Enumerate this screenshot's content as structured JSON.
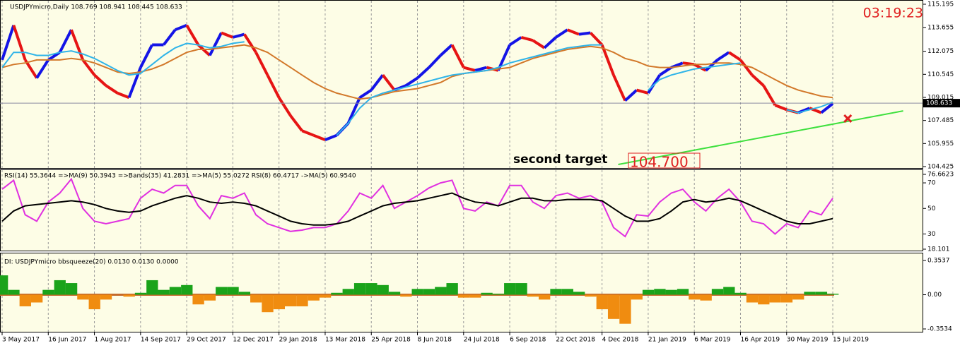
{
  "chart_data": [
    {
      "type": "line",
      "title": "USDJPYmicro,Daily  108.769 108.941 108.445 108.633",
      "clock": "03:19:23",
      "ylim": [
        104.425,
        115.195
      ],
      "yticks": [
        104.425,
        105.955,
        107.485,
        109.015,
        110.545,
        112.075,
        113.655,
        115.195
      ],
      "current_price": 108.633,
      "up_color": "#1414e6",
      "down_color": "#e61414",
      "values": [
        111.5,
        113.8,
        111.5,
        110.3,
        111.5,
        112.0,
        113.5,
        111.5,
        110.5,
        109.8,
        109.3,
        109.0,
        111.0,
        112.5,
        112.5,
        113.5,
        113.8,
        112.5,
        111.8,
        113.3,
        113.0,
        113.2,
        112.0,
        110.5,
        109.0,
        107.8,
        106.8,
        106.5,
        106.2,
        106.5,
        107.3,
        109.0,
        109.5,
        110.5,
        109.5,
        109.8,
        110.3,
        111.0,
        111.8,
        112.5,
        111.0,
        110.8,
        111.0,
        110.8,
        112.5,
        113.0,
        112.8,
        112.3,
        113.0,
        113.5,
        113.2,
        113.3,
        112.5,
        110.5,
        108.8,
        109.5,
        109.3,
        110.5,
        111.0,
        111.3,
        111.2,
        110.8,
        111.5,
        112.0,
        111.5,
        110.5,
        109.8,
        108.5,
        108.2,
        108.0,
        108.3,
        108.0,
        108.6
      ],
      "series": [
        {
          "color": "#d2782a",
          "values": [
            111.0,
            111.2,
            111.3,
            111.5,
            111.5,
            111.5,
            111.6,
            111.5,
            111.3,
            111.0,
            110.7,
            110.6,
            110.7,
            110.9,
            111.2,
            111.6,
            112.0,
            112.2,
            112.2,
            112.3,
            112.4,
            112.5,
            112.3,
            112.0,
            111.5,
            111.0,
            110.5,
            110.0,
            109.6,
            109.3,
            109.1,
            108.9,
            109.0,
            109.2,
            109.4,
            109.5,
            109.6,
            109.8,
            110.0,
            110.4,
            110.6,
            110.7,
            110.8,
            110.9,
            111.0,
            111.3,
            111.6,
            111.8,
            112.0,
            112.2,
            112.3,
            112.4,
            112.3,
            112.0,
            111.6,
            111.4,
            111.1,
            111.0,
            111.0,
            111.1,
            111.2,
            111.2,
            111.3,
            111.3,
            111.2,
            111.0,
            110.6,
            110.2,
            109.8,
            109.5,
            109.3,
            109.1,
            109.0
          ]
        },
        {
          "color": "#2fb4e8",
          "values": [
            111.0,
            112.0,
            112.0,
            111.8,
            111.8,
            112.0,
            112.1,
            111.9,
            111.6,
            111.2,
            110.8,
            110.5,
            110.6,
            111.2,
            111.8,
            112.3,
            112.6,
            112.5,
            112.3,
            112.4,
            112.6,
            112.7,
            null,
            null,
            null,
            null,
            null,
            null,
            null,
            106.5,
            107.3,
            108.3,
            109.0,
            109.3,
            109.5,
            109.7,
            109.9,
            110.1,
            110.3,
            110.5,
            110.6,
            110.7,
            110.8,
            111.0,
            111.3,
            111.5,
            111.7,
            111.9,
            112.1,
            112.3,
            112.4,
            112.5,
            112.5,
            null,
            null,
            null,
            109.5,
            110.2,
            110.5,
            110.7,
            110.9,
            111.0,
            111.1,
            111.2,
            111.3,
            null,
            null,
            null,
            108.2,
            108.0,
            108.2,
            108.4,
            108.7
          ]
        }
      ],
      "annotations": [
        {
          "text": "second target"
        },
        {
          "text": "104.700"
        }
      ],
      "trendline": {
        "color": "#3ee03e",
        "x": [
          53.4,
          78.1
        ],
        "y": [
          104.565,
          108.12
        ]
      },
      "marker": {
        "color": "#e02020",
        "x": 73.3,
        "y": 107.61
      }
    },
    {
      "type": "line",
      "title": "RSI(14) 55.3644  =>MA(9) 50.3943  =>Bands(35) 41.2831  =>MA(5) 55.0272  RSI(8) 60.4717  ->MA(5) 60.9540",
      "ylim": [
        18.101,
        76.6623
      ],
      "yticks": [
        18.101,
        30,
        50,
        70,
        76.6623
      ],
      "series": [
        {
          "color": "#e030e0",
          "values": [
            65,
            72,
            45,
            40,
            55,
            62,
            73,
            50,
            40,
            38,
            40,
            42,
            58,
            65,
            62,
            68,
            68,
            52,
            42,
            60,
            58,
            62,
            45,
            38,
            35,
            32,
            33,
            35,
            35,
            38,
            48,
            62,
            58,
            68,
            50,
            55,
            60,
            66,
            70,
            72,
            50,
            48,
            55,
            52,
            68,
            68,
            55,
            50,
            60,
            62,
            58,
            60,
            55,
            35,
            28,
            45,
            44,
            55,
            62,
            65,
            55,
            48,
            58,
            65,
            55,
            40,
            38,
            30,
            38,
            35,
            48,
            45,
            58
          ]
        },
        {
          "color": "#000000",
          "values": [
            40,
            48,
            52,
            53,
            54,
            55,
            56,
            55,
            53,
            50,
            48,
            47,
            48,
            52,
            55,
            58,
            60,
            58,
            55,
            54,
            55,
            54,
            52,
            48,
            44,
            40,
            38,
            37,
            37,
            38,
            40,
            44,
            48,
            52,
            54,
            55,
            56,
            58,
            60,
            62,
            58,
            55,
            54,
            52,
            55,
            58,
            58,
            56,
            56,
            57,
            57,
            57,
            56,
            50,
            44,
            40,
            40,
            42,
            48,
            55,
            57,
            55,
            56,
            58,
            56,
            52,
            48,
            44,
            40,
            38,
            38,
            40,
            42
          ]
        }
      ]
    },
    {
      "type": "bar",
      "title": "DI: USDJPYmicro bbsqueeze(20) 0.0130 0.0130 0.0000",
      "ylim": [
        -0.3534,
        0.3537
      ],
      "yticks": [
        -0.3534,
        {
          "value": 0,
          "label": "0.00"
        },
        0.3537
      ],
      "positive_color": "#1aa31a",
      "negative_color": "#f08c10",
      "categories": [
        "3 May 2017",
        null,
        null,
        null,
        "16 Jun 2017",
        null,
        null,
        null,
        "1 Aug 2017",
        null,
        null,
        null,
        "14 Sep 2017",
        null,
        null,
        null,
        "29 Oct 2017",
        null,
        null,
        null,
        "12 Dec 2017",
        null,
        null,
        null,
        "29 Jan 2018",
        null,
        null,
        null,
        "13 Mar 2018",
        null,
        null,
        null,
        "25 Apr 2018",
        null,
        null,
        null,
        "8 Jun 2018",
        null,
        null,
        null,
        "24 Jul 2018",
        null,
        null,
        null,
        "6 Sep 2018",
        null,
        null,
        null,
        "22 Oct 2018",
        null,
        null,
        null,
        "4 Dec 2018",
        null,
        null,
        null,
        "21 Jan 2019",
        null,
        null,
        null,
        "6 Mar 2019",
        null,
        null,
        null,
        "16 Apr 2019",
        null,
        null,
        null,
        "30 May 2019",
        null,
        null,
        null,
        "15 Jul 2019"
      ],
      "values": [
        0.2,
        0.05,
        -0.12,
        -0.08,
        0.05,
        0.15,
        0.12,
        -0.05,
        -0.15,
        -0.05,
        0.0,
        -0.02,
        0.02,
        0.15,
        0.05,
        0.08,
        0.1,
        -0.1,
        -0.06,
        0.08,
        0.08,
        0.03,
        -0.08,
        -0.18,
        -0.15,
        -0.12,
        -0.12,
        -0.06,
        -0.03,
        0.02,
        0.06,
        0.12,
        0.12,
        0.1,
        0.03,
        -0.02,
        0.06,
        0.06,
        0.08,
        0.12,
        -0.03,
        -0.03,
        0.02,
        0.01,
        0.12,
        0.12,
        -0.02,
        -0.05,
        0.06,
        0.06,
        0.03,
        -0.02,
        -0.15,
        -0.25,
        -0.3,
        -0.05,
        0.05,
        0.06,
        0.05,
        0.06,
        -0.05,
        -0.06,
        0.06,
        0.08,
        0.02,
        -0.08,
        -0.1,
        -0.08,
        -0.08,
        -0.05,
        0.03,
        0.03,
        0.01
      ]
    }
  ]
}
